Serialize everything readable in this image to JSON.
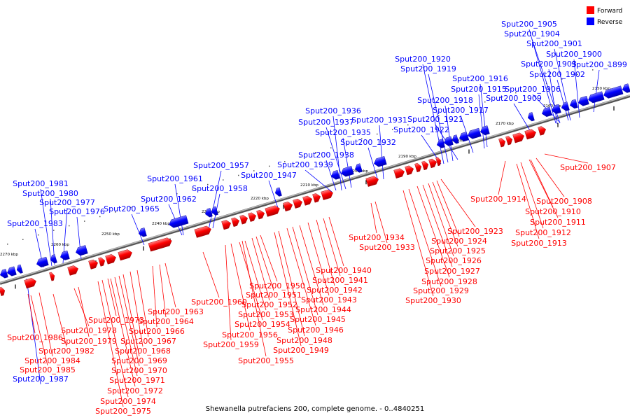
{
  "legend": {
    "items": [
      {
        "label": "Forward",
        "color": "#ff0000"
      },
      {
        "label": "Reverse",
        "color": "#0000ff"
      }
    ]
  },
  "caption": "Shewanella putrefaciens 200, complete genome. - 0..4840251",
  "colors": {
    "forward": "#ff0000",
    "reverse": "#0000ff",
    "backbone": "#888888"
  },
  "scale_ticks": [
    {
      "label": "2150 kbp",
      "kbp": 2150
    },
    {
      "label": "2160 kbp",
      "kbp": 2160
    },
    {
      "label": "2170 kbp",
      "kbp": 2170
    },
    {
      "label": "2180 kbp",
      "kbp": 2180
    },
    {
      "label": "2190 kbp",
      "kbp": 2190
    },
    {
      "label": "2200 kbp",
      "kbp": 2200
    },
    {
      "label": "2210 kbp",
      "kbp": 2210
    },
    {
      "label": "2220 kbp",
      "kbp": 2220
    },
    {
      "label": "2230 kbp",
      "kbp": 2230
    },
    {
      "label": "2240 kbp",
      "kbp": 2240
    },
    {
      "label": "2250 kbp",
      "kbp": 2250
    },
    {
      "label": "2260 kbp",
      "kbp": 2260
    },
    {
      "label": "2270 kbp",
      "kbp": 2270
    }
  ],
  "reverse_labels": [
    "Sput200_1905",
    "Sput200_1904",
    "Sput200_1901",
    "Sput200_1900",
    "Sput200_1903",
    "Sput200_1899",
    "Sput200_1902",
    "Sput200_1906",
    "Sput200_1909",
    "Sput200_1920",
    "Sput200_1919",
    "Sput200_1916",
    "Sput200_1915",
    "Sput200_1918",
    "Sput200_1917",
    "Sput200_1921",
    "Sput200_1922",
    "Sput200_1936",
    "Sput200_1931",
    "Sput200_1937",
    "Sput200_1935",
    "Sput200_1932",
    "Sput200_1938",
    "Sput200_1939",
    "Sput200_1957",
    "Sput200_1947",
    "Sput200_1961",
    "Sput200_1958",
    "Sput200_1962",
    "Sput200_1965",
    "Sput200_1981",
    "Sput200_1980",
    "Sput200_1977",
    "Sput200_1976",
    "Sput200_1983",
    "Sput200_1987"
  ],
  "forward_labels": [
    "Sput200_1907",
    "Sput200_1914",
    "Sput200_1908",
    "Sput200_1910",
    "Sput200_1911",
    "Sput200_1912",
    "Sput200_1913",
    "Sput200_1923",
    "Sput200_1924",
    "Sput200_1925",
    "Sput200_1926",
    "Sput200_1927",
    "Sput200_1928",
    "Sput200_1929",
    "Sput200_1930",
    "Sput200_1934",
    "Sput200_1933",
    "Sput200_1940",
    "Sput200_1941",
    "Sput200_1942",
    "Sput200_1943",
    "Sput200_1944",
    "Sput200_1945",
    "Sput200_1946",
    "Sput200_1948",
    "Sput200_1949",
    "Sput200_1950",
    "Sput200_1951",
    "Sput200_1952",
    "Sput200_1953",
    "Sput200_1954",
    "Sput200_1956",
    "Sput200_1959",
    "Sput200_1955",
    "Sput200_1960",
    "Sput200_1963",
    "Sput200_1964",
    "Sput200_1966",
    "Sput200_1967",
    "Sput200_1968",
    "Sput200_1969",
    "Sput200_1970",
    "Sput200_1971",
    "Sput200_1972",
    "Sput200_1973",
    "Sput200_1974",
    "Sput200_1975",
    "Sput200_1978",
    "Sput200_1979",
    "Sput200_1982",
    "Sput200_1984",
    "Sput200_1985",
    "Sput200_1986"
  ]
}
